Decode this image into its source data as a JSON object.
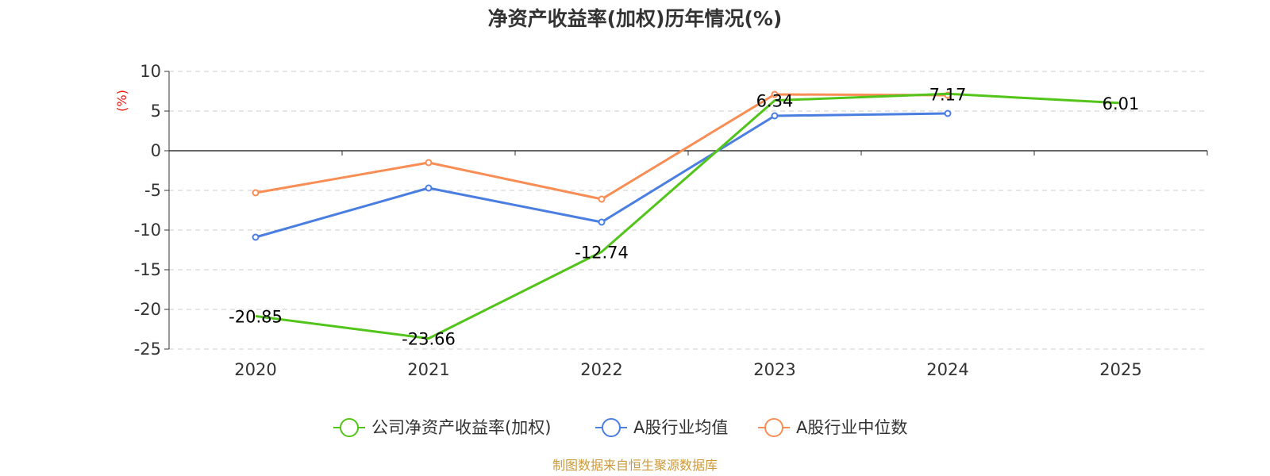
{
  "chart_data": {
    "type": "line",
    "title": "净资产收益率(加权)历年情况(%)",
    "ylabel": "(%)",
    "xlabel": "",
    "categories": [
      "2020",
      "2021",
      "2022",
      "2023",
      "2024",
      "2025"
    ],
    "ylim": [
      -25,
      10
    ],
    "yticks": [
      10,
      5,
      0,
      -5,
      -10,
      -15,
      -20,
      -25
    ],
    "grid": true,
    "legend_position": "bottom",
    "series": [
      {
        "name": "公司净资产收益率(加权)",
        "color": "#52c41a",
        "values": [
          -20.85,
          -23.66,
          -12.74,
          6.34,
          7.17,
          6.01
        ],
        "labels": [
          "-20.85",
          "-23.66",
          "-12.74",
          "6.34",
          "7.17",
          "6.01"
        ]
      },
      {
        "name": "A股行业均值",
        "color": "#4a7ee0",
        "values": [
          -10.9,
          -4.7,
          -9.0,
          4.4,
          4.7,
          null
        ]
      },
      {
        "name": "A股行业中位数",
        "color": "#f88e55",
        "values": [
          -5.3,
          -1.5,
          -6.1,
          7.1,
          7.0,
          null
        ]
      }
    ]
  },
  "source": "制图数据来自恒生聚源数据库"
}
